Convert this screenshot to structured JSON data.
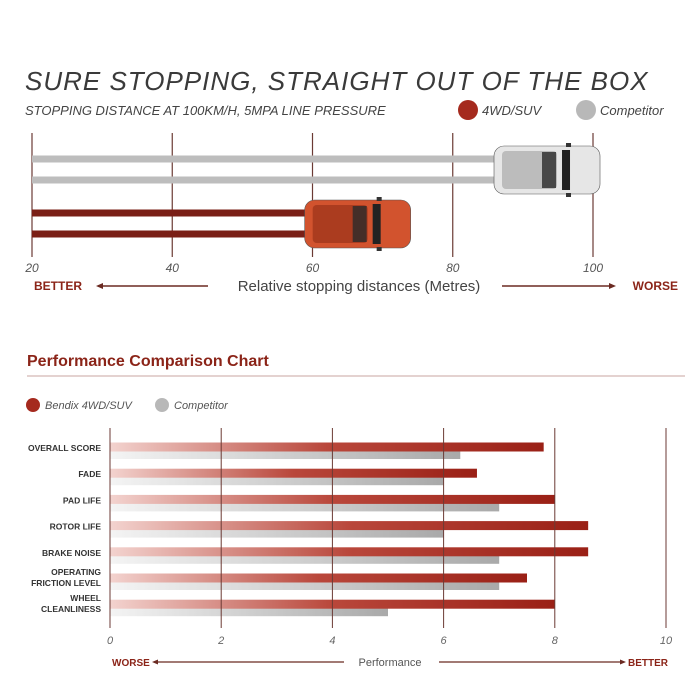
{
  "colors": {
    "brand": "#a52a1e",
    "dark_red": "#7a1f16",
    "competitor": "#b8b8b8",
    "grid": "#6b3a34",
    "text": "#333333"
  },
  "chart_data": [
    {
      "type": "bar",
      "orientation": "horizontal",
      "title": "SURE STOPPING, STRAIGHT OUT OF THE BOX",
      "subtitle": "STOPPING DISTANCE AT 100KM/H, 5MPA LINE PRESSURE",
      "xlabel": "Relative stopping distances (Metres)",
      "xlabel_left": "BETTER",
      "xlabel_right": "WORSE",
      "xlim": [
        20,
        100
      ],
      "xticks": [
        "20",
        "40",
        "60",
        "80",
        "100"
      ],
      "grid": true,
      "legend_position": "top-right",
      "series": [
        {
          "name": "4WD/SUV",
          "color": "#a52a1e",
          "value": 74,
          "icon": "orange-suv-car"
        },
        {
          "name": "Competitor",
          "color": "#b8b8b8",
          "value": 101,
          "icon": "white-suv-car"
        }
      ]
    },
    {
      "type": "bar",
      "orientation": "horizontal",
      "title": "Performance Comparison Chart",
      "xlabel": "Performance",
      "xlabel_left": "WORSE",
      "xlabel_right": "BETTER",
      "xlim": [
        0,
        10
      ],
      "xticks": [
        "0",
        "2",
        "4",
        "6",
        "8",
        "10"
      ],
      "grid": true,
      "legend_position": "top-left",
      "categories": [
        [
          "OVERALL SCORE"
        ],
        [
          "FADE"
        ],
        [
          "PAD LIFE"
        ],
        [
          "ROTOR LIFE"
        ],
        [
          "BRAKE NOISE"
        ],
        [
          "OPERATING",
          "FRICTION LEVEL"
        ],
        [
          "WHEEL",
          "CLEANLINESS"
        ]
      ],
      "series": [
        {
          "name": "Bendix 4WD/SUV",
          "color": "#a52a1e",
          "values": [
            7.8,
            6.6,
            8.0,
            8.6,
            8.6,
            7.5,
            8.0
          ]
        },
        {
          "name": "Competitor",
          "color": "#b8b8b8",
          "values": [
            6.3,
            6.0,
            7.0,
            6.0,
            7.0,
            7.0,
            5.0
          ]
        }
      ]
    }
  ]
}
